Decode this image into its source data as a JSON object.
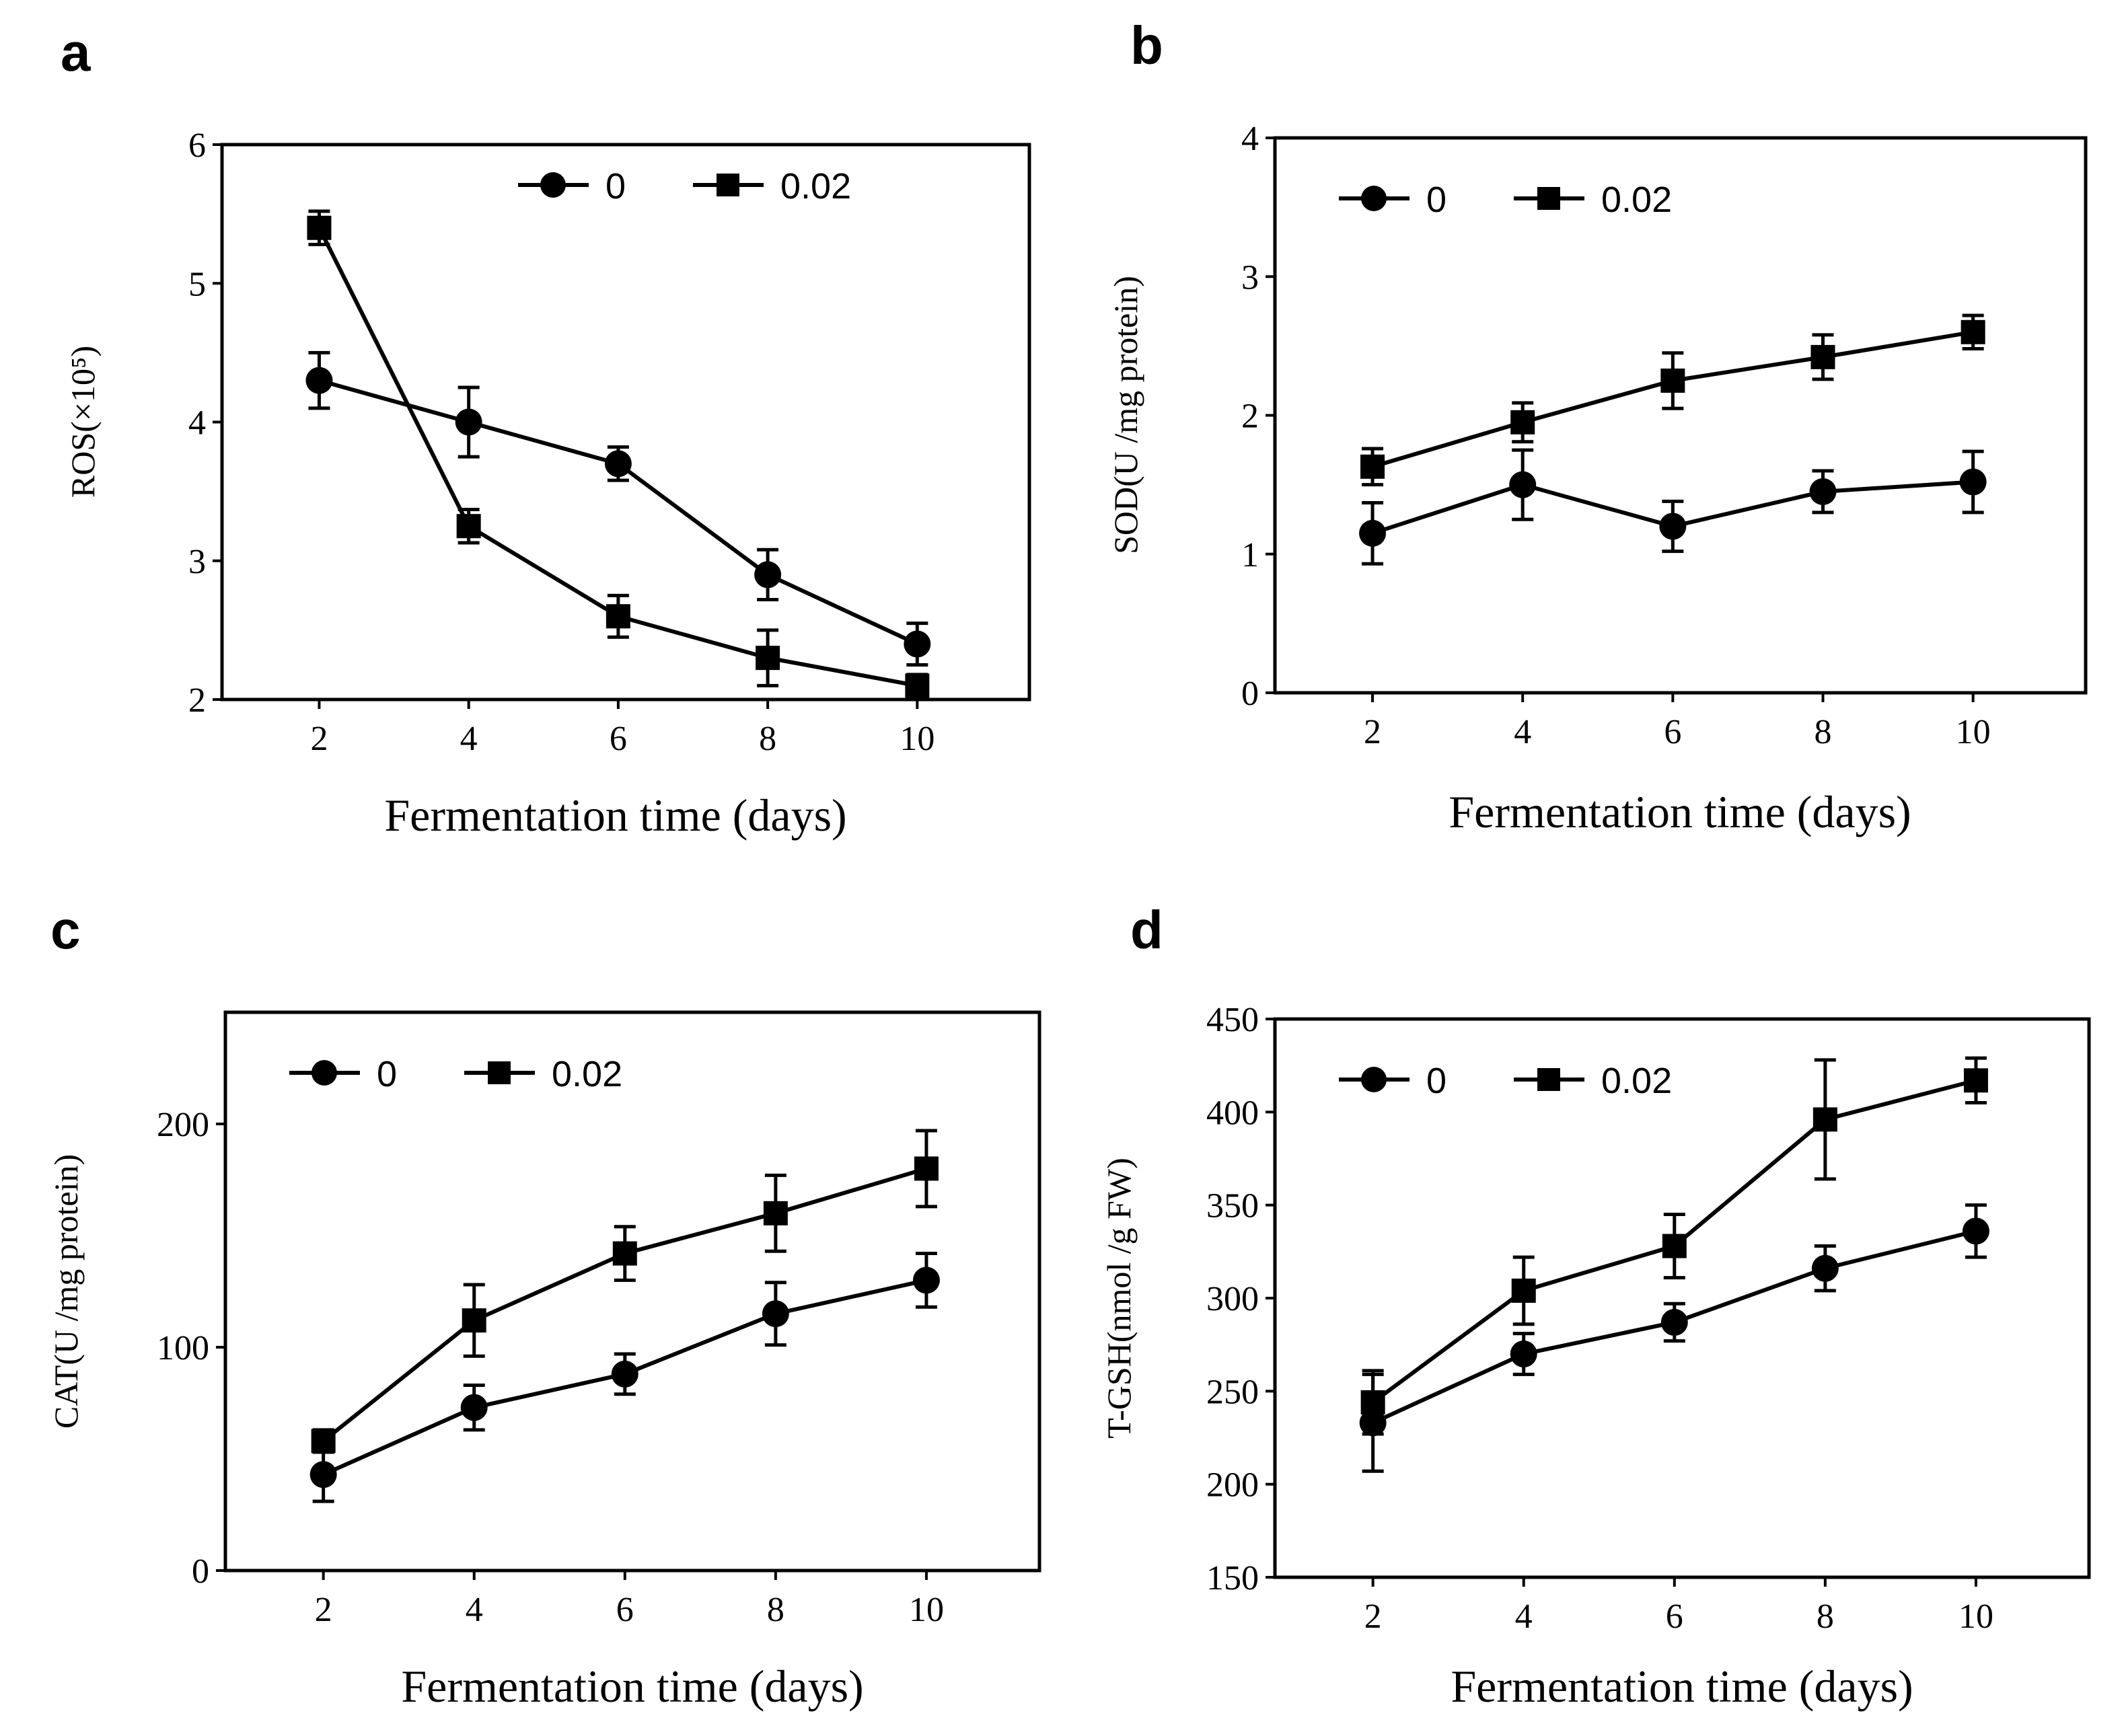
{
  "chart_data": [
    {
      "panel": "a",
      "type": "line",
      "xlabel": "Fermentation time (days)",
      "ylabel": "ROS(×10⁵)",
      "x": [
        2,
        4,
        6,
        8,
        10
      ],
      "xticks": [
        "2",
        "4",
        "6",
        "8",
        "10"
      ],
      "ylim": [
        2,
        6
      ],
      "yticks": [
        "2",
        "3",
        "4",
        "5",
        "6"
      ],
      "legend_position": "top-center",
      "series": [
        {
          "name": "0",
          "marker": "circle",
          "values": [
            4.3,
            4.0,
            3.7,
            2.9,
            2.4
          ],
          "errors": [
            0.2,
            0.25,
            0.12,
            0.18,
            0.15
          ]
        },
        {
          "name": "0.02",
          "marker": "square",
          "values": [
            5.4,
            3.25,
            2.6,
            2.3,
            2.1
          ],
          "errors": [
            0.12,
            0.12,
            0.15,
            0.2,
            0.08
          ]
        }
      ]
    },
    {
      "panel": "b",
      "type": "line",
      "xlabel": "Fermentation time (days)",
      "ylabel": "SOD(U /mg protein)",
      "x": [
        2,
        4,
        6,
        8,
        10
      ],
      "xticks": [
        "2",
        "4",
        "6",
        "8",
        "10"
      ],
      "ylim": [
        0,
        4
      ],
      "yticks": [
        "0",
        "1",
        "2",
        "3",
        "4"
      ],
      "legend_position": "top-left",
      "series": [
        {
          "name": "0",
          "marker": "circle",
          "values": [
            1.15,
            1.5,
            1.2,
            1.45,
            1.52
          ],
          "errors": [
            0.22,
            0.25,
            0.18,
            0.15,
            0.22
          ]
        },
        {
          "name": "0.02",
          "marker": "square",
          "values": [
            1.63,
            1.95,
            2.25,
            2.42,
            2.6
          ],
          "errors": [
            0.13,
            0.14,
            0.2,
            0.16,
            0.12
          ]
        }
      ]
    },
    {
      "panel": "c",
      "type": "line",
      "xlabel": "Fermentation time (days)",
      "ylabel": "CAT(U /mg protein)",
      "x": [
        2,
        4,
        6,
        8,
        10
      ],
      "xticks": [
        "2",
        "4",
        "6",
        "8",
        "10"
      ],
      "ylim": [
        0,
        250
      ],
      "yticks": [
        "0",
        "100",
        "200"
      ],
      "ytick_values": [
        0,
        100,
        200
      ],
      "legend_position": "top-left",
      "series": [
        {
          "name": "0",
          "marker": "circle",
          "values": [
            43,
            73,
            88,
            115,
            130
          ],
          "errors": [
            12,
            10,
            9,
            14,
            12
          ]
        },
        {
          "name": "0.02",
          "marker": "square",
          "values": [
            58,
            112,
            142,
            160,
            180
          ],
          "errors": [
            5,
            16,
            12,
            17,
            17
          ]
        }
      ]
    },
    {
      "panel": "d",
      "type": "line",
      "xlabel": "Fermentation time (days)",
      "ylabel": "T-GSH(nmol /g FW)",
      "x": [
        2,
        4,
        6,
        8,
        10
      ],
      "xticks": [
        "2",
        "4",
        "6",
        "8",
        "10"
      ],
      "ylim": [
        150,
        450
      ],
      "yticks": [
        "150",
        "200",
        "250",
        "300",
        "350",
        "400",
        "450"
      ],
      "legend_position": "top-left",
      "series": [
        {
          "name": "0",
          "marker": "circle",
          "values": [
            233,
            270,
            287,
            316,
            336
          ],
          "errors": [
            26,
            11,
            10,
            12,
            14
          ]
        },
        {
          "name": "0.02",
          "marker": "square",
          "values": [
            244,
            304,
            328,
            396,
            417
          ],
          "errors": [
            17,
            18,
            17,
            32,
            12
          ]
        }
      ]
    }
  ]
}
